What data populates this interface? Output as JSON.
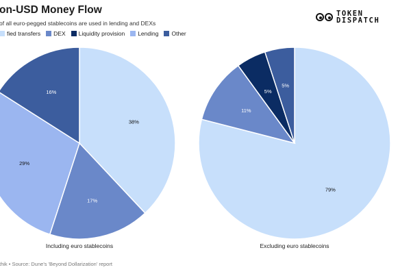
{
  "header": {
    "title": "on-USD Money Flow",
    "subtitle": "of all euro-pegged stablecoins are used in lending and DEXs"
  },
  "logo": {
    "line1": "TOKEN",
    "line2": "DISPATCH"
  },
  "footer": {
    "source": "thik • Source: Dune's 'Beyond Dollarization' report"
  },
  "colors": {
    "transfers": "#c7dffb",
    "dex": "#6a88c9",
    "liquidity": "#0b2c63",
    "lending": "#9bb6f0",
    "other": "#3c5d9e"
  },
  "chart_data": [
    {
      "type": "pie",
      "caption": "Including euro stablecoins",
      "legend": [
        {
          "key": "transfers",
          "label": "fied transfers"
        },
        {
          "key": "dex",
          "label": "DEX"
        },
        {
          "key": "liquidity",
          "label": "Liquidity provision"
        },
        {
          "key": "lending",
          "label": "Lending"
        },
        {
          "key": "other",
          "label": "Other"
        }
      ],
      "slices": [
        {
          "key": "transfers",
          "value": 38,
          "label": "38%"
        },
        {
          "key": "dex",
          "value": 17,
          "label": "17%"
        },
        {
          "key": "lending",
          "value": 29,
          "label": "29%"
        },
        {
          "key": "other",
          "value": 16,
          "label": "16%"
        }
      ]
    },
    {
      "type": "pie",
      "caption": "Excluding euro stablecoins",
      "slices": [
        {
          "key": "transfers",
          "value": 79,
          "label": "79%"
        },
        {
          "key": "dex",
          "value": 11,
          "label": "11%"
        },
        {
          "key": "liquidity",
          "value": 5,
          "label": "5%"
        },
        {
          "key": "other",
          "value": 5,
          "label": "5%"
        }
      ]
    }
  ]
}
